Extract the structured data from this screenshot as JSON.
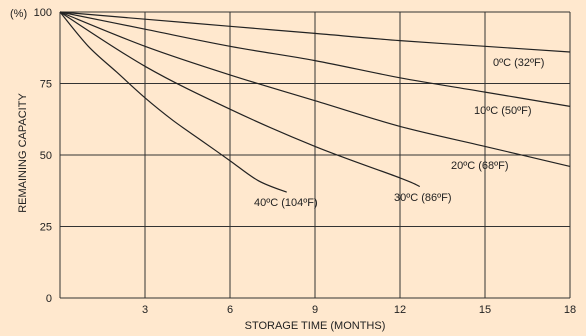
{
  "chart_data": {
    "type": "line",
    "title": "",
    "xlabel": "STORAGE TIME (MONTHS)",
    "ylabel": "REMAINING CAPACITY",
    "y_unit": "(%)",
    "xlim": [
      0,
      18
    ],
    "ylim": [
      0,
      100
    ],
    "x_ticks": [
      3,
      6,
      9,
      12,
      15,
      18
    ],
    "y_ticks": [
      0,
      25,
      50,
      75,
      100
    ],
    "grid": true,
    "background_color": "#ffe8ce",
    "line_color": "#222222",
    "series": [
      {
        "name": "0ºC (32ºF)",
        "x": [
          0,
          3,
          6,
          9,
          12,
          15,
          18
        ],
        "y": [
          100,
          97.5,
          95,
          92.5,
          90,
          88,
          86
        ]
      },
      {
        "name": "10ºC (50ºF)",
        "x": [
          0,
          3,
          6,
          9,
          12,
          15,
          18
        ],
        "y": [
          100,
          94,
          88,
          83,
          77,
          72,
          67
        ]
      },
      {
        "name": "20ºC (68ºF)",
        "x": [
          0,
          3,
          6,
          9,
          12,
          15,
          18
        ],
        "y": [
          100,
          88,
          78,
          69,
          60,
          53,
          46
        ]
      },
      {
        "name": "30ºC (86ºF)",
        "x": [
          0,
          3,
          6,
          9,
          12,
          12.7
        ],
        "y": [
          100,
          81,
          66,
          53,
          42,
          39
        ]
      },
      {
        "name": "40ºC (104ºF)",
        "x": [
          0,
          1,
          2,
          3,
          4,
          5,
          6,
          7,
          8
        ],
        "y": [
          100,
          88,
          79,
          70,
          62,
          55,
          48,
          41,
          37
        ]
      }
    ]
  }
}
